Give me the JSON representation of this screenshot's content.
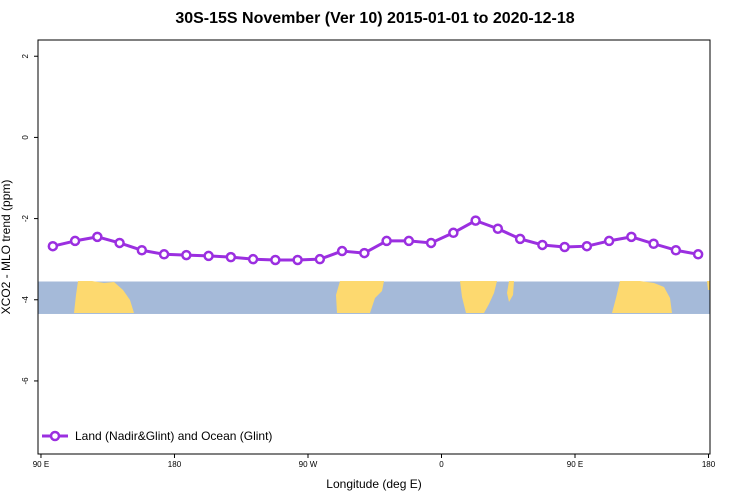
{
  "chart_data": {
    "type": "line",
    "title": "30S-15S November (Ver 10)   2015-01-01 to 2020-12-18",
    "xlabel": "Longitude (deg E)",
    "ylabel": "XCO2 - MLO trend (ppm)",
    "x_ticks": [
      {
        "value": 90,
        "label": "90 E"
      },
      {
        "value": 180,
        "label": "180"
      },
      {
        "value": 270,
        "label": "90 W"
      },
      {
        "value": 360,
        "label": "0"
      },
      {
        "value": 450,
        "label": "90 E"
      },
      {
        "value": 540,
        "label": "180"
      }
    ],
    "y_ticks": [
      2,
      0,
      -2,
      -4,
      -6
    ],
    "xlim": [
      88,
      541
    ],
    "ylim": [
      -7.8,
      2.4
    ],
    "grid": false,
    "legend_position": "bottom-left",
    "series": [
      {
        "name": "Land (Nadir&Glint) and Ocean (Glint)",
        "color": "#9b2fe0",
        "x": [
          98,
          113,
          128,
          143,
          158,
          173,
          188,
          203,
          218,
          233,
          248,
          263,
          278,
          293,
          308,
          323,
          338,
          353,
          368,
          383,
          398,
          413,
          428,
          443,
          458,
          473,
          488,
          503,
          518,
          533
        ],
        "values": [
          -2.68,
          -2.55,
          -2.45,
          -2.6,
          -2.78,
          -2.88,
          -2.9,
          -2.92,
          -2.95,
          -3.0,
          -3.02,
          -3.02,
          -3.0,
          -2.8,
          -2.85,
          -2.55,
          -2.55,
          -2.6,
          -2.35,
          -2.05,
          -2.25,
          -2.5,
          -2.65,
          -2.7,
          -2.68,
          -2.55,
          -2.45,
          -2.62,
          -2.78,
          -2.88
        ]
      }
    ],
    "map_band": {
      "y_range": [
        -4.35,
        -3.55
      ],
      "ocean_color": "#a5bad9",
      "land_color": "#fdd96f"
    }
  }
}
